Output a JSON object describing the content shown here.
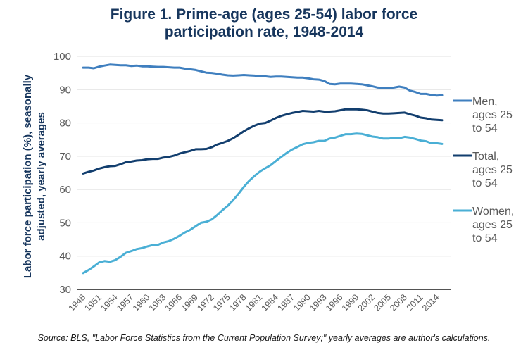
{
  "chart_data": {
    "type": "line",
    "title_lines": [
      "Figure 1. Prime-age (ages 25-54) labor force",
      "participation rate, 1948-2014"
    ],
    "xlabel": "",
    "ylabel_lines": [
      "Labor force participation (%), seasonally",
      "adjusted, yearly averages"
    ],
    "ylim": [
      30,
      100
    ],
    "yticks": [
      30,
      40,
      50,
      60,
      70,
      80,
      90,
      100
    ],
    "xlim": [
      1948,
      2015
    ],
    "xticks": [
      "1948",
      "1951",
      "1954",
      "1957",
      "1960",
      "1963",
      "1966",
      "1969",
      "1972",
      "1975",
      "1978",
      "1981",
      "1984",
      "1987",
      "1990",
      "1993",
      "1996",
      "1999",
      "2002",
      "2005",
      "2008",
      "2011",
      "2014"
    ],
    "grid": true,
    "legend_position": "right",
    "x": [
      1948,
      1949,
      1950,
      1951,
      1952,
      1953,
      1954,
      1955,
      1956,
      1957,
      1958,
      1959,
      1960,
      1961,
      1962,
      1963,
      1964,
      1965,
      1966,
      1967,
      1968,
      1969,
      1970,
      1971,
      1972,
      1973,
      1974,
      1975,
      1976,
      1977,
      1978,
      1979,
      1980,
      1981,
      1982,
      1983,
      1984,
      1985,
      1986,
      1987,
      1988,
      1989,
      1990,
      1991,
      1992,
      1993,
      1994,
      1995,
      1996,
      1997,
      1998,
      1999,
      2000,
      2001,
      2002,
      2003,
      2004,
      2005,
      2006,
      2007,
      2008,
      2009,
      2010,
      2011,
      2012,
      2013,
      2014,
      2015
    ],
    "series": [
      {
        "name": "Men, ages 25 to 54",
        "legend_lines": [
          "Men,",
          "ages 25",
          "to 54"
        ],
        "color": "#3f7fbf",
        "values": [
          96.6,
          96.6,
          96.4,
          96.9,
          97.2,
          97.5,
          97.4,
          97.3,
          97.3,
          97.1,
          97.2,
          97.0,
          97.0,
          96.9,
          96.8,
          96.8,
          96.7,
          96.6,
          96.6,
          96.3,
          96.1,
          95.9,
          95.5,
          95.1,
          95.0,
          94.8,
          94.5,
          94.3,
          94.2,
          94.3,
          94.4,
          94.3,
          94.2,
          94.0,
          94.0,
          93.8,
          93.9,
          93.9,
          93.8,
          93.7,
          93.6,
          93.6,
          93.4,
          93.1,
          93.0,
          92.6,
          91.7,
          91.6,
          91.8,
          91.8,
          91.8,
          91.7,
          91.6,
          91.3,
          91.0,
          90.6,
          90.5,
          90.5,
          90.6,
          90.9,
          90.6,
          89.7,
          89.3,
          88.7,
          88.7,
          88.4,
          88.2,
          88.3
        ]
      },
      {
        "name": "Total, ages 25 to 54",
        "legend_lines": [
          "Total,",
          "ages 25",
          "to 54"
        ],
        "color": "#123e6e",
        "values": [
          64.8,
          65.3,
          65.7,
          66.3,
          66.7,
          67.0,
          67.1,
          67.6,
          68.2,
          68.4,
          68.7,
          68.8,
          69.1,
          69.2,
          69.2,
          69.6,
          69.8,
          70.2,
          70.8,
          71.2,
          71.6,
          72.1,
          72.1,
          72.2,
          72.7,
          73.5,
          74.0,
          74.6,
          75.4,
          76.4,
          77.5,
          78.4,
          79.2,
          79.8,
          80.0,
          80.7,
          81.5,
          82.1,
          82.6,
          83.0,
          83.3,
          83.6,
          83.5,
          83.4,
          83.6,
          83.4,
          83.4,
          83.5,
          83.8,
          84.1,
          84.1,
          84.1,
          84.0,
          83.8,
          83.4,
          83.0,
          82.8,
          82.8,
          82.9,
          83.0,
          83.1,
          82.6,
          82.2,
          81.6,
          81.4,
          81.0,
          80.9,
          80.8
        ]
      },
      {
        "name": "Women, ages 25 to 54",
        "legend_lines": [
          "Women,",
          "ages 25",
          "to 54"
        ],
        "color": "#4aafd5",
        "values": [
          34.9,
          35.8,
          36.9,
          38.1,
          38.5,
          38.3,
          38.8,
          39.8,
          41.0,
          41.5,
          42.1,
          42.4,
          42.9,
          43.3,
          43.4,
          44.1,
          44.5,
          45.2,
          46.1,
          47.1,
          47.9,
          49.0,
          50.0,
          50.3,
          51.0,
          52.3,
          53.8,
          55.1,
          56.8,
          58.7,
          60.8,
          62.6,
          64.1,
          65.4,
          66.4,
          67.3,
          68.6,
          69.8,
          71.0,
          72.0,
          72.8,
          73.6,
          74.0,
          74.2,
          74.6,
          74.6,
          75.3,
          75.6,
          76.1,
          76.6,
          76.6,
          76.8,
          76.7,
          76.3,
          75.9,
          75.7,
          75.3,
          75.3,
          75.5,
          75.4,
          75.8,
          75.6,
          75.2,
          74.7,
          74.5,
          73.9,
          73.9,
          73.7
        ]
      }
    ]
  },
  "header": {
    "title_line1": "Figure 1. Prime-age (ages 25-54) labor force",
    "title_line2": "participation rate, 1948-2014"
  },
  "footer": {
    "source": "Source: BLS, \"Labor Force Statistics from the Current Population Survey;\" yearly averages are author's calculations."
  }
}
